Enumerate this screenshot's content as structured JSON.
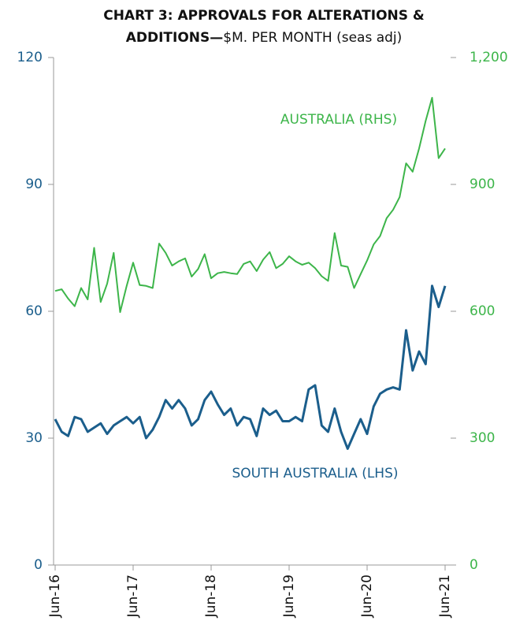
{
  "chart_data": {
    "type": "line",
    "title_line1": "CHART 3: APPROVALS FOR ALTERATIONS &",
    "title_line2_bold": "ADDITIONS—",
    "title_line2_rest": "$M. PER MONTH (seas adj)",
    "categories": [
      "Jun-16",
      null,
      null,
      null,
      null,
      null,
      null,
      null,
      null,
      null,
      null,
      null,
      "Jun-17",
      null,
      null,
      null,
      null,
      null,
      null,
      null,
      null,
      null,
      null,
      null,
      "Jun-18",
      null,
      null,
      null,
      null,
      null,
      null,
      null,
      null,
      null,
      null,
      null,
      "Jun-19",
      null,
      null,
      null,
      null,
      null,
      null,
      null,
      null,
      null,
      null,
      null,
      "Jun-20",
      null,
      null,
      null,
      null,
      null,
      null,
      null,
      null,
      null,
      null,
      null,
      "Jun-21"
    ],
    "ylim": [
      0,
      120
    ],
    "yticks": [
      0,
      30,
      60,
      90,
      120
    ],
    "y2lim": [
      0,
      1200
    ],
    "y2ticks": [
      0,
      300,
      600,
      900,
      {
        "value": 1200,
        "label": "1,200"
      }
    ],
    "series": [
      {
        "name": "SOUTH AUSTRALIA (LHS)",
        "color": "#1b5e8c",
        "axis": "y",
        "values": [
          34.5,
          31.5,
          30.5,
          35,
          34.5,
          31.5,
          32.5,
          33.5,
          31,
          33,
          34,
          35,
          33.5,
          35,
          30,
          32,
          35,
          39,
          37,
          39,
          37,
          33,
          34.5,
          39,
          41,
          38,
          35.5,
          37,
          33,
          35,
          34.5,
          30.5,
          37,
          35.5,
          36.5,
          34,
          34,
          35,
          34,
          41.5,
          42.5,
          33,
          31.5,
          37,
          31.5,
          27.5,
          31,
          34.5,
          31,
          37.5,
          40.5,
          41.5,
          42,
          41.5,
          55.5,
          46,
          50.5,
          47.5,
          66,
          61,
          66
        ]
      },
      {
        "name": "AUSTRALIA (RHS)",
        "color": "#3db54a",
        "axis": "y2",
        "values": [
          648,
          652,
          630,
          612,
          655,
          628,
          750,
          622,
          665,
          738,
          598,
          660,
          715,
          662,
          660,
          655,
          760,
          738,
          708,
          718,
          725,
          682,
          700,
          735,
          678,
          690,
          693,
          690,
          688,
          712,
          718,
          695,
          722,
          740,
          702,
          712,
          730,
          718,
          710,
          715,
          702,
          683,
          672,
          785,
          708,
          705,
          655,
          688,
          720,
          758,
          778,
          820,
          840,
          870,
          950,
          930,
          985,
          1050,
          1105,
          962,
          985
        ]
      }
    ]
  }
}
